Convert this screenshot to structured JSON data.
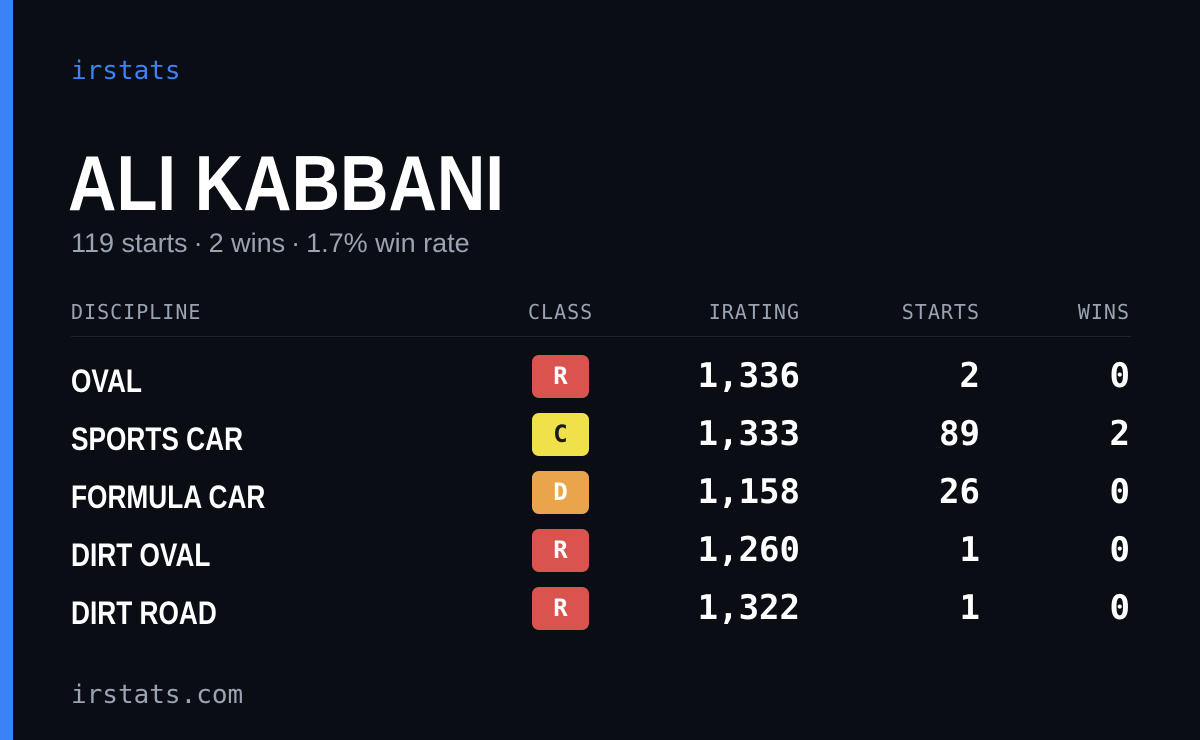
{
  "brand": "irstats",
  "driver": {
    "name": "ALI KABBANI",
    "summary": {
      "starts": "119 starts",
      "wins": "2 wins",
      "win_rate": "1.7% win rate",
      "separator": "·"
    }
  },
  "table": {
    "headers": {
      "discipline": "DISCIPLINE",
      "class": "CLASS",
      "irating": "IRATING",
      "starts": "STARTS",
      "wins": "WINS"
    },
    "rows": [
      {
        "discipline": "OVAL",
        "class": "R",
        "class_color": "#d9534f",
        "irating": "1,336",
        "starts": "2",
        "wins": "0"
      },
      {
        "discipline": "SPORTS CAR",
        "class": "C",
        "class_color": "#f0e14a",
        "irating": "1,333",
        "starts": "89",
        "wins": "2"
      },
      {
        "discipline": "FORMULA CAR",
        "class": "D",
        "class_color": "#eaa54c",
        "irating": "1,158",
        "starts": "26",
        "wins": "0"
      },
      {
        "discipline": "DIRT OVAL",
        "class": "R",
        "class_color": "#d9534f",
        "irating": "1,260",
        "starts": "1",
        "wins": "0"
      },
      {
        "discipline": "DIRT ROAD",
        "class": "R",
        "class_color": "#d9534f",
        "irating": "1,322",
        "starts": "1",
        "wins": "0"
      }
    ]
  },
  "footer": "irstats.com",
  "colors": {
    "background": "#0a0d14",
    "accent": "#3b82f6",
    "muted_text": "#9aa3b2"
  }
}
